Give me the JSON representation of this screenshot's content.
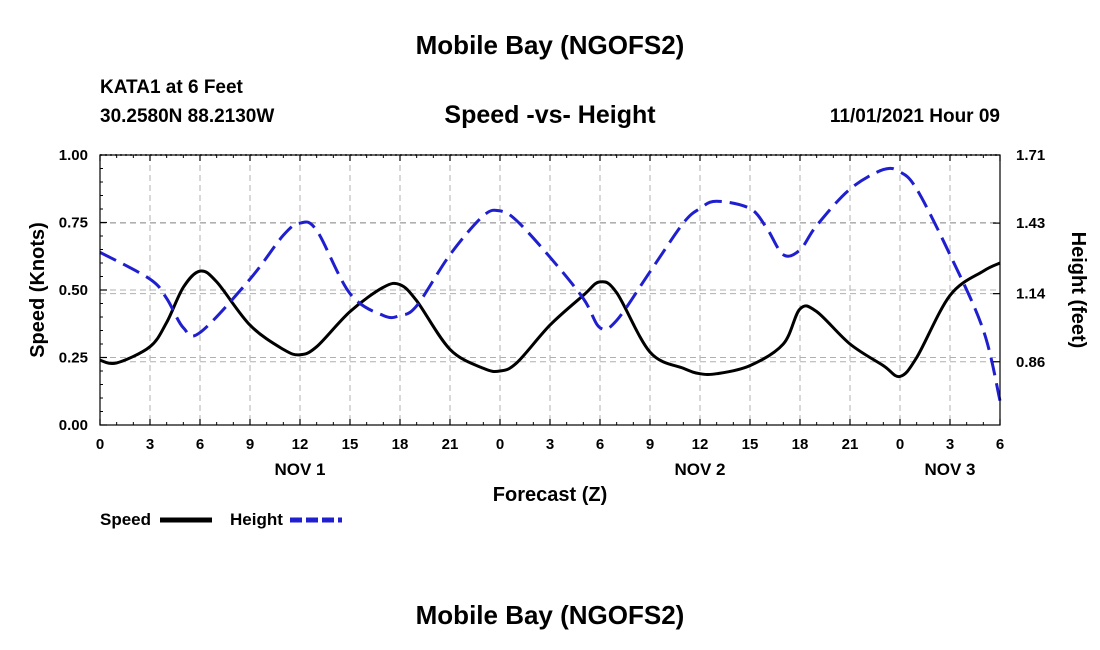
{
  "header": {
    "title": "Mobile Bay (NGOFS2)",
    "station": "KATA1 at 6 Feet",
    "coords": "30.2580N  88.2130W",
    "datetime": "11/01/2021 Hour 09"
  },
  "footer": {
    "title": "Mobile Bay (NGOFS2)"
  },
  "chart_data": {
    "type": "line",
    "title": "Speed -vs- Height",
    "xlabel": "Forecast (Z)",
    "ylabel": "Speed (Knots)",
    "y2label": "Height (feet)",
    "xlim": [
      0,
      54
    ],
    "ylim": [
      0,
      1
    ],
    "y2lim": [
      0.6,
      1.71
    ],
    "x_ticks": [
      0,
      3,
      6,
      9,
      12,
      15,
      18,
      21,
      24,
      27,
      30,
      33,
      36,
      39,
      42,
      45,
      48,
      51,
      54
    ],
    "x_tick_labels": [
      "0",
      "3",
      "6",
      "9",
      "12",
      "15",
      "18",
      "21",
      "0",
      "3",
      "6",
      "9",
      "12",
      "15",
      "18",
      "21",
      "0",
      "3",
      "6"
    ],
    "day_labels": [
      {
        "x": 12,
        "label": "NOV 1"
      },
      {
        "x": 36,
        "label": "NOV 2"
      },
      {
        "x": 51,
        "label": "NOV 3"
      }
    ],
    "y_ticks": [
      0,
      0.25,
      0.5,
      0.75,
      1
    ],
    "y_tick_labels": [
      "0.00",
      "0.25",
      "0.50",
      "0.75",
      "1.00"
    ],
    "y2_ticks": [
      0.86,
      1.14,
      1.43,
      1.71
    ],
    "y2_tick_labels": [
      "0.86",
      "1.14",
      "1.43",
      "1.71"
    ],
    "grid": true,
    "legend_position": "bottom-left",
    "series": [
      {
        "name": "Speed",
        "axis": "left",
        "color": "#000000",
        "style": "solid",
        "x": [
          0,
          1,
          3,
          4,
          5,
          6,
          7,
          9,
          11,
          12,
          13,
          15,
          17,
          18,
          19,
          21,
          23,
          24,
          25,
          27,
          29,
          30,
          31,
          33,
          35,
          36,
          37,
          39,
          41,
          42,
          43,
          45,
          47,
          48,
          49,
          51,
          53,
          54
        ],
        "values": [
          0.24,
          0.23,
          0.29,
          0.38,
          0.51,
          0.57,
          0.53,
          0.37,
          0.28,
          0.26,
          0.29,
          0.42,
          0.51,
          0.52,
          0.46,
          0.28,
          0.21,
          0.2,
          0.23,
          0.37,
          0.48,
          0.53,
          0.49,
          0.27,
          0.21,
          0.19,
          0.19,
          0.22,
          0.3,
          0.43,
          0.42,
          0.3,
          0.22,
          0.18,
          0.25,
          0.48,
          0.57,
          0.6
        ]
      },
      {
        "name": "Height",
        "axis": "right",
        "color": "#1f1fcf",
        "style": "dashed",
        "x": [
          0,
          3,
          4,
          5,
          6,
          9,
          11,
          12,
          13,
          15,
          17,
          18,
          19,
          21,
          23,
          24,
          25,
          27,
          29,
          30,
          31,
          33,
          35,
          36,
          37,
          39,
          40,
          41,
          42,
          43,
          45,
          47,
          48,
          49,
          51,
          53,
          54
        ],
        "values": [
          1.31,
          1.2,
          1.12,
          1.0,
          0.98,
          1.2,
          1.38,
          1.43,
          1.4,
          1.14,
          1.05,
          1.05,
          1.09,
          1.3,
          1.46,
          1.48,
          1.44,
          1.29,
          1.12,
          1.0,
          1.03,
          1.23,
          1.43,
          1.49,
          1.52,
          1.49,
          1.41,
          1.3,
          1.32,
          1.42,
          1.57,
          1.65,
          1.64,
          1.57,
          1.3,
          0.99,
          0.7
        ]
      }
    ]
  }
}
